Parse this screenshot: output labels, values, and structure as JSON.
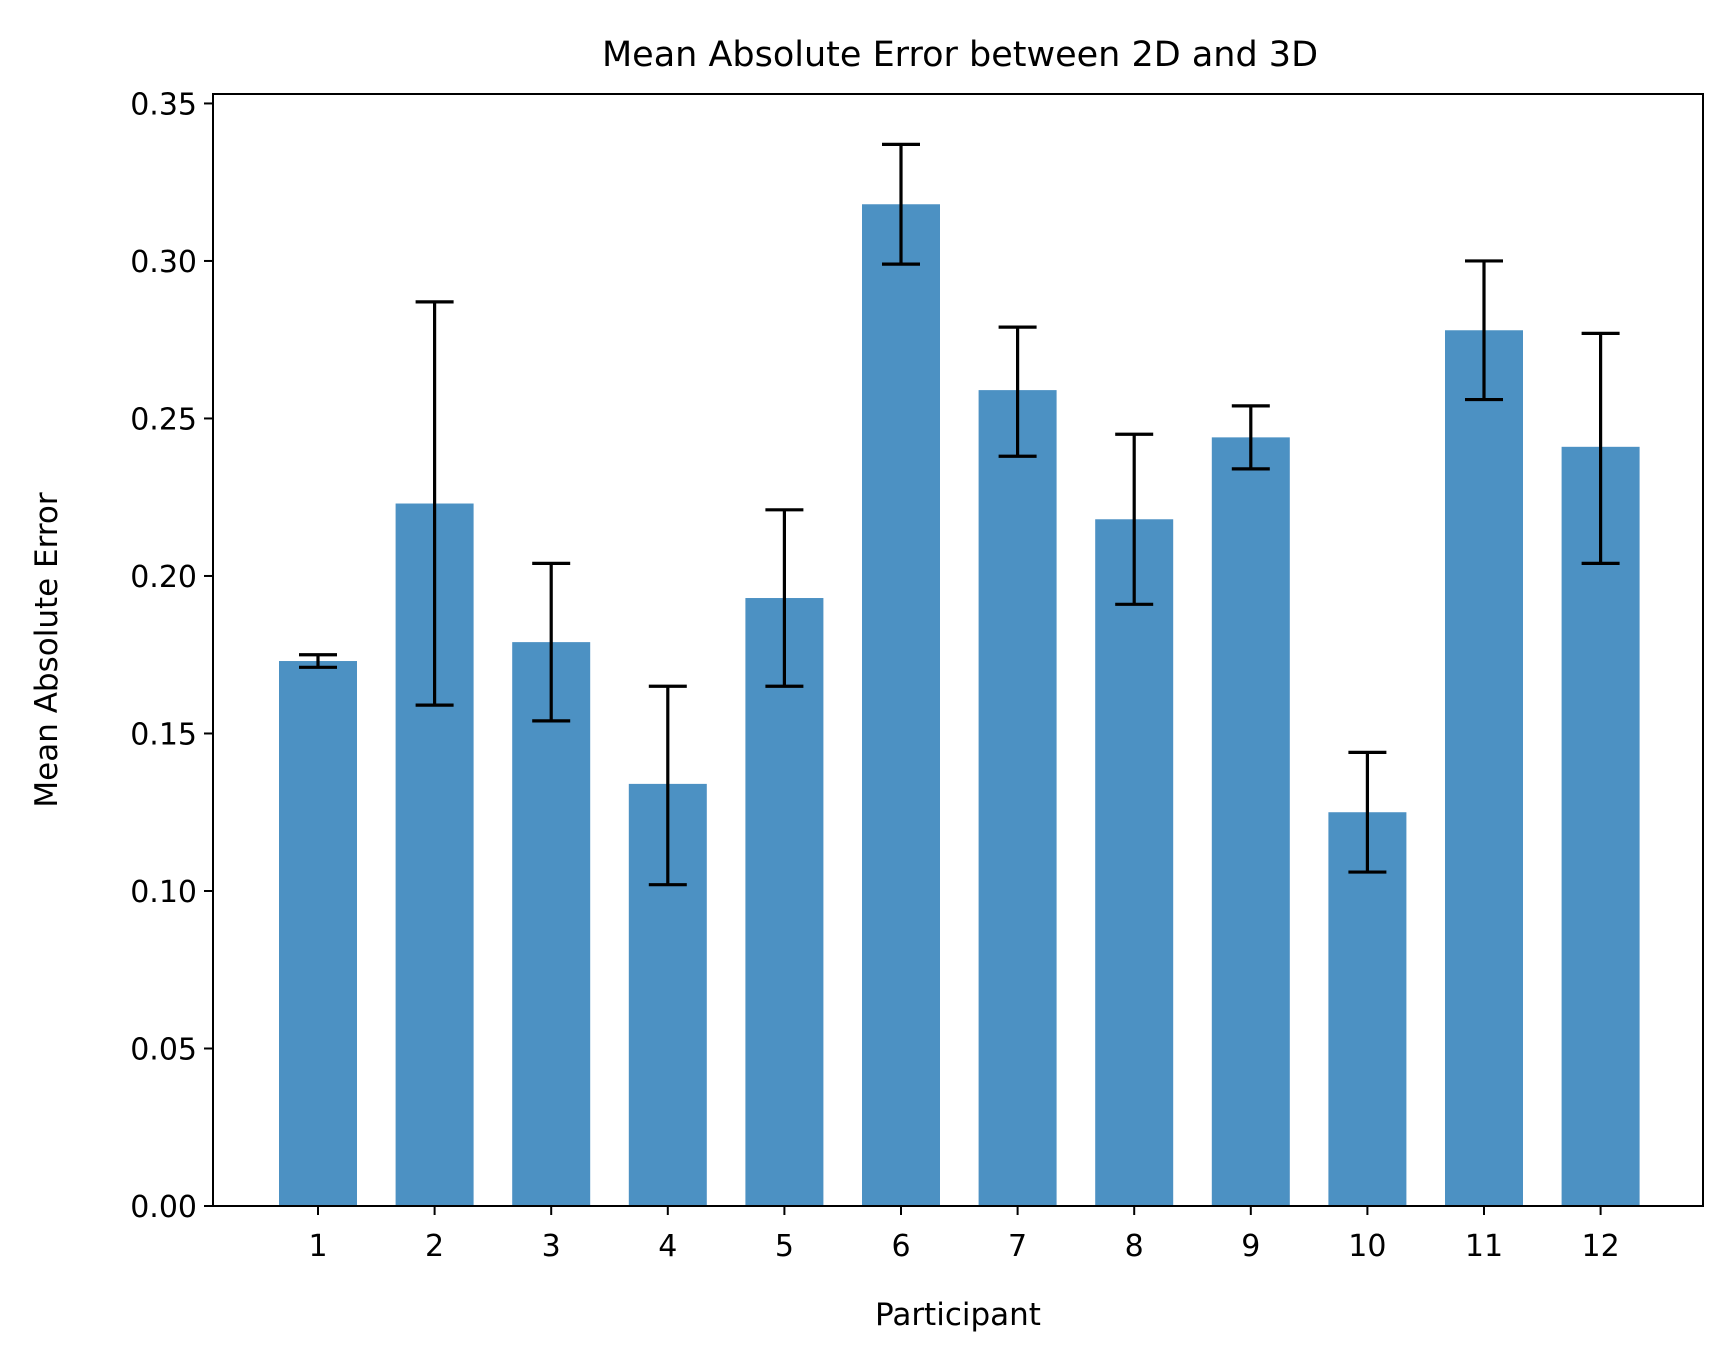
{
  "chart_data": {
    "type": "bar",
    "title": "Mean Absolute Error between 2D and 3D",
    "xlabel": "Participant",
    "ylabel": "Mean Absolute Error",
    "categories": [
      "1",
      "2",
      "3",
      "4",
      "5",
      "6",
      "7",
      "8",
      "9",
      "10",
      "11",
      "12"
    ],
    "values": [
      0.173,
      0.223,
      0.179,
      0.134,
      0.193,
      0.318,
      0.259,
      0.218,
      0.244,
      0.125,
      0.278,
      0.241
    ],
    "error_low": [
      0.171,
      0.159,
      0.154,
      0.102,
      0.165,
      0.299,
      0.238,
      0.191,
      0.234,
      0.106,
      0.256,
      0.204
    ],
    "error_high": [
      0.175,
      0.287,
      0.204,
      0.165,
      0.221,
      0.337,
      0.279,
      0.245,
      0.254,
      0.144,
      0.3,
      0.277
    ],
    "ylim": [
      0,
      0.353
    ],
    "yticks": [
      "0.00",
      "0.05",
      "0.10",
      "0.15",
      "0.20",
      "0.25",
      "0.30",
      "0.35"
    ],
    "grid": false,
    "bar_color": "#4c91c3",
    "error_color": "#000000"
  }
}
